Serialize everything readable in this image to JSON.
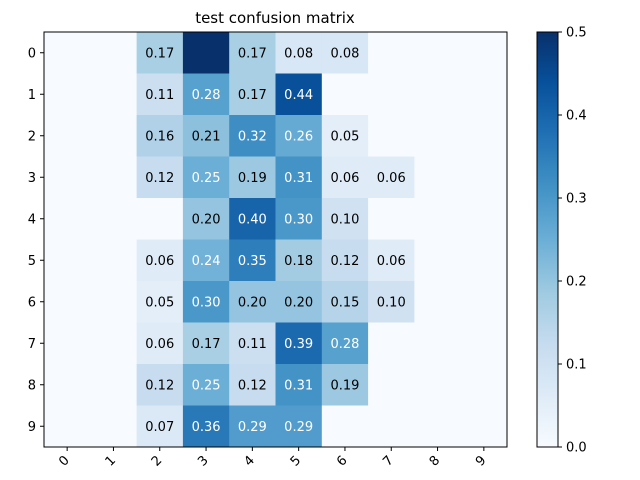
{
  "chart_data": {
    "type": "heatmap",
    "title": "test confusion matrix",
    "xlabel": "",
    "ylabel": "",
    "x_ticks": [
      "0",
      "1",
      "2",
      "3",
      "4",
      "5",
      "6",
      "7",
      "8",
      "9"
    ],
    "y_ticks": [
      "0",
      "1",
      "2",
      "3",
      "4",
      "5",
      "6",
      "7",
      "8",
      "9"
    ],
    "values": [
      [
        0,
        0,
        0.17,
        0.5,
        0.17,
        0.08,
        0.08,
        0,
        0,
        0
      ],
      [
        0,
        0,
        0.11,
        0.28,
        0.17,
        0.44,
        0,
        0,
        0,
        0
      ],
      [
        0,
        0,
        0.16,
        0.21,
        0.32,
        0.26,
        0.05,
        0,
        0,
        0
      ],
      [
        0,
        0,
        0.12,
        0.25,
        0.19,
        0.31,
        0.06,
        0.06,
        0,
        0
      ],
      [
        0,
        0,
        0,
        0.2,
        0.4,
        0.3,
        0.1,
        0,
        0,
        0
      ],
      [
        0,
        0,
        0.06,
        0.24,
        0.35,
        0.18,
        0.12,
        0.06,
        0,
        0
      ],
      [
        0,
        0,
        0.05,
        0.3,
        0.2,
        0.2,
        0.15,
        0.1,
        0,
        0
      ],
      [
        0,
        0,
        0.06,
        0.17,
        0.11,
        0.39,
        0.28,
        0,
        0,
        0
      ],
      [
        0,
        0,
        0.12,
        0.25,
        0.12,
        0.31,
        0.19,
        0,
        0,
        0
      ],
      [
        0,
        0,
        0.07,
        0.36,
        0.29,
        0.29,
        0,
        0,
        0,
        0
      ]
    ],
    "cell_labels": [
      [
        "",
        "",
        "0.17",
        "",
        "0.17",
        "0.08",
        "0.08",
        "",
        "",
        ""
      ],
      [
        "",
        "",
        "0.11",
        "0.28",
        "0.17",
        "0.44",
        "",
        "",
        "",
        ""
      ],
      [
        "",
        "",
        "0.16",
        "0.21",
        "0.32",
        "0.26",
        "0.05",
        "",
        "",
        ""
      ],
      [
        "",
        "",
        "0.12",
        "0.25",
        "0.19",
        "0.31",
        "0.06",
        "0.06",
        "",
        ""
      ],
      [
        "",
        "",
        "",
        "0.20",
        "0.40",
        "0.30",
        "0.10",
        "",
        "",
        ""
      ],
      [
        "",
        "",
        "0.06",
        "0.24",
        "0.35",
        "0.18",
        "0.12",
        "0.06",
        "",
        ""
      ],
      [
        "",
        "",
        "0.05",
        "0.30",
        "0.20",
        "0.20",
        "0.15",
        "0.10",
        "",
        ""
      ],
      [
        "",
        "",
        "0.06",
        "0.17",
        "0.11",
        "0.39",
        "0.28",
        "",
        "",
        ""
      ],
      [
        "",
        "",
        "0.12",
        "0.25",
        "0.12",
        "0.31",
        "0.19",
        "",
        "",
        ""
      ],
      [
        "",
        "",
        "0.07",
        "0.36",
        "0.29",
        "0.29",
        "",
        "",
        "",
        ""
      ]
    ],
    "colormap": "Blues",
    "colorbar": {
      "range": [
        0,
        0.5
      ],
      "ticks": [
        "0.0",
        "0.1",
        "0.2",
        "0.3",
        "0.4",
        "0.5"
      ]
    },
    "x_tick_rotation": "45-degree",
    "grid": false
  }
}
